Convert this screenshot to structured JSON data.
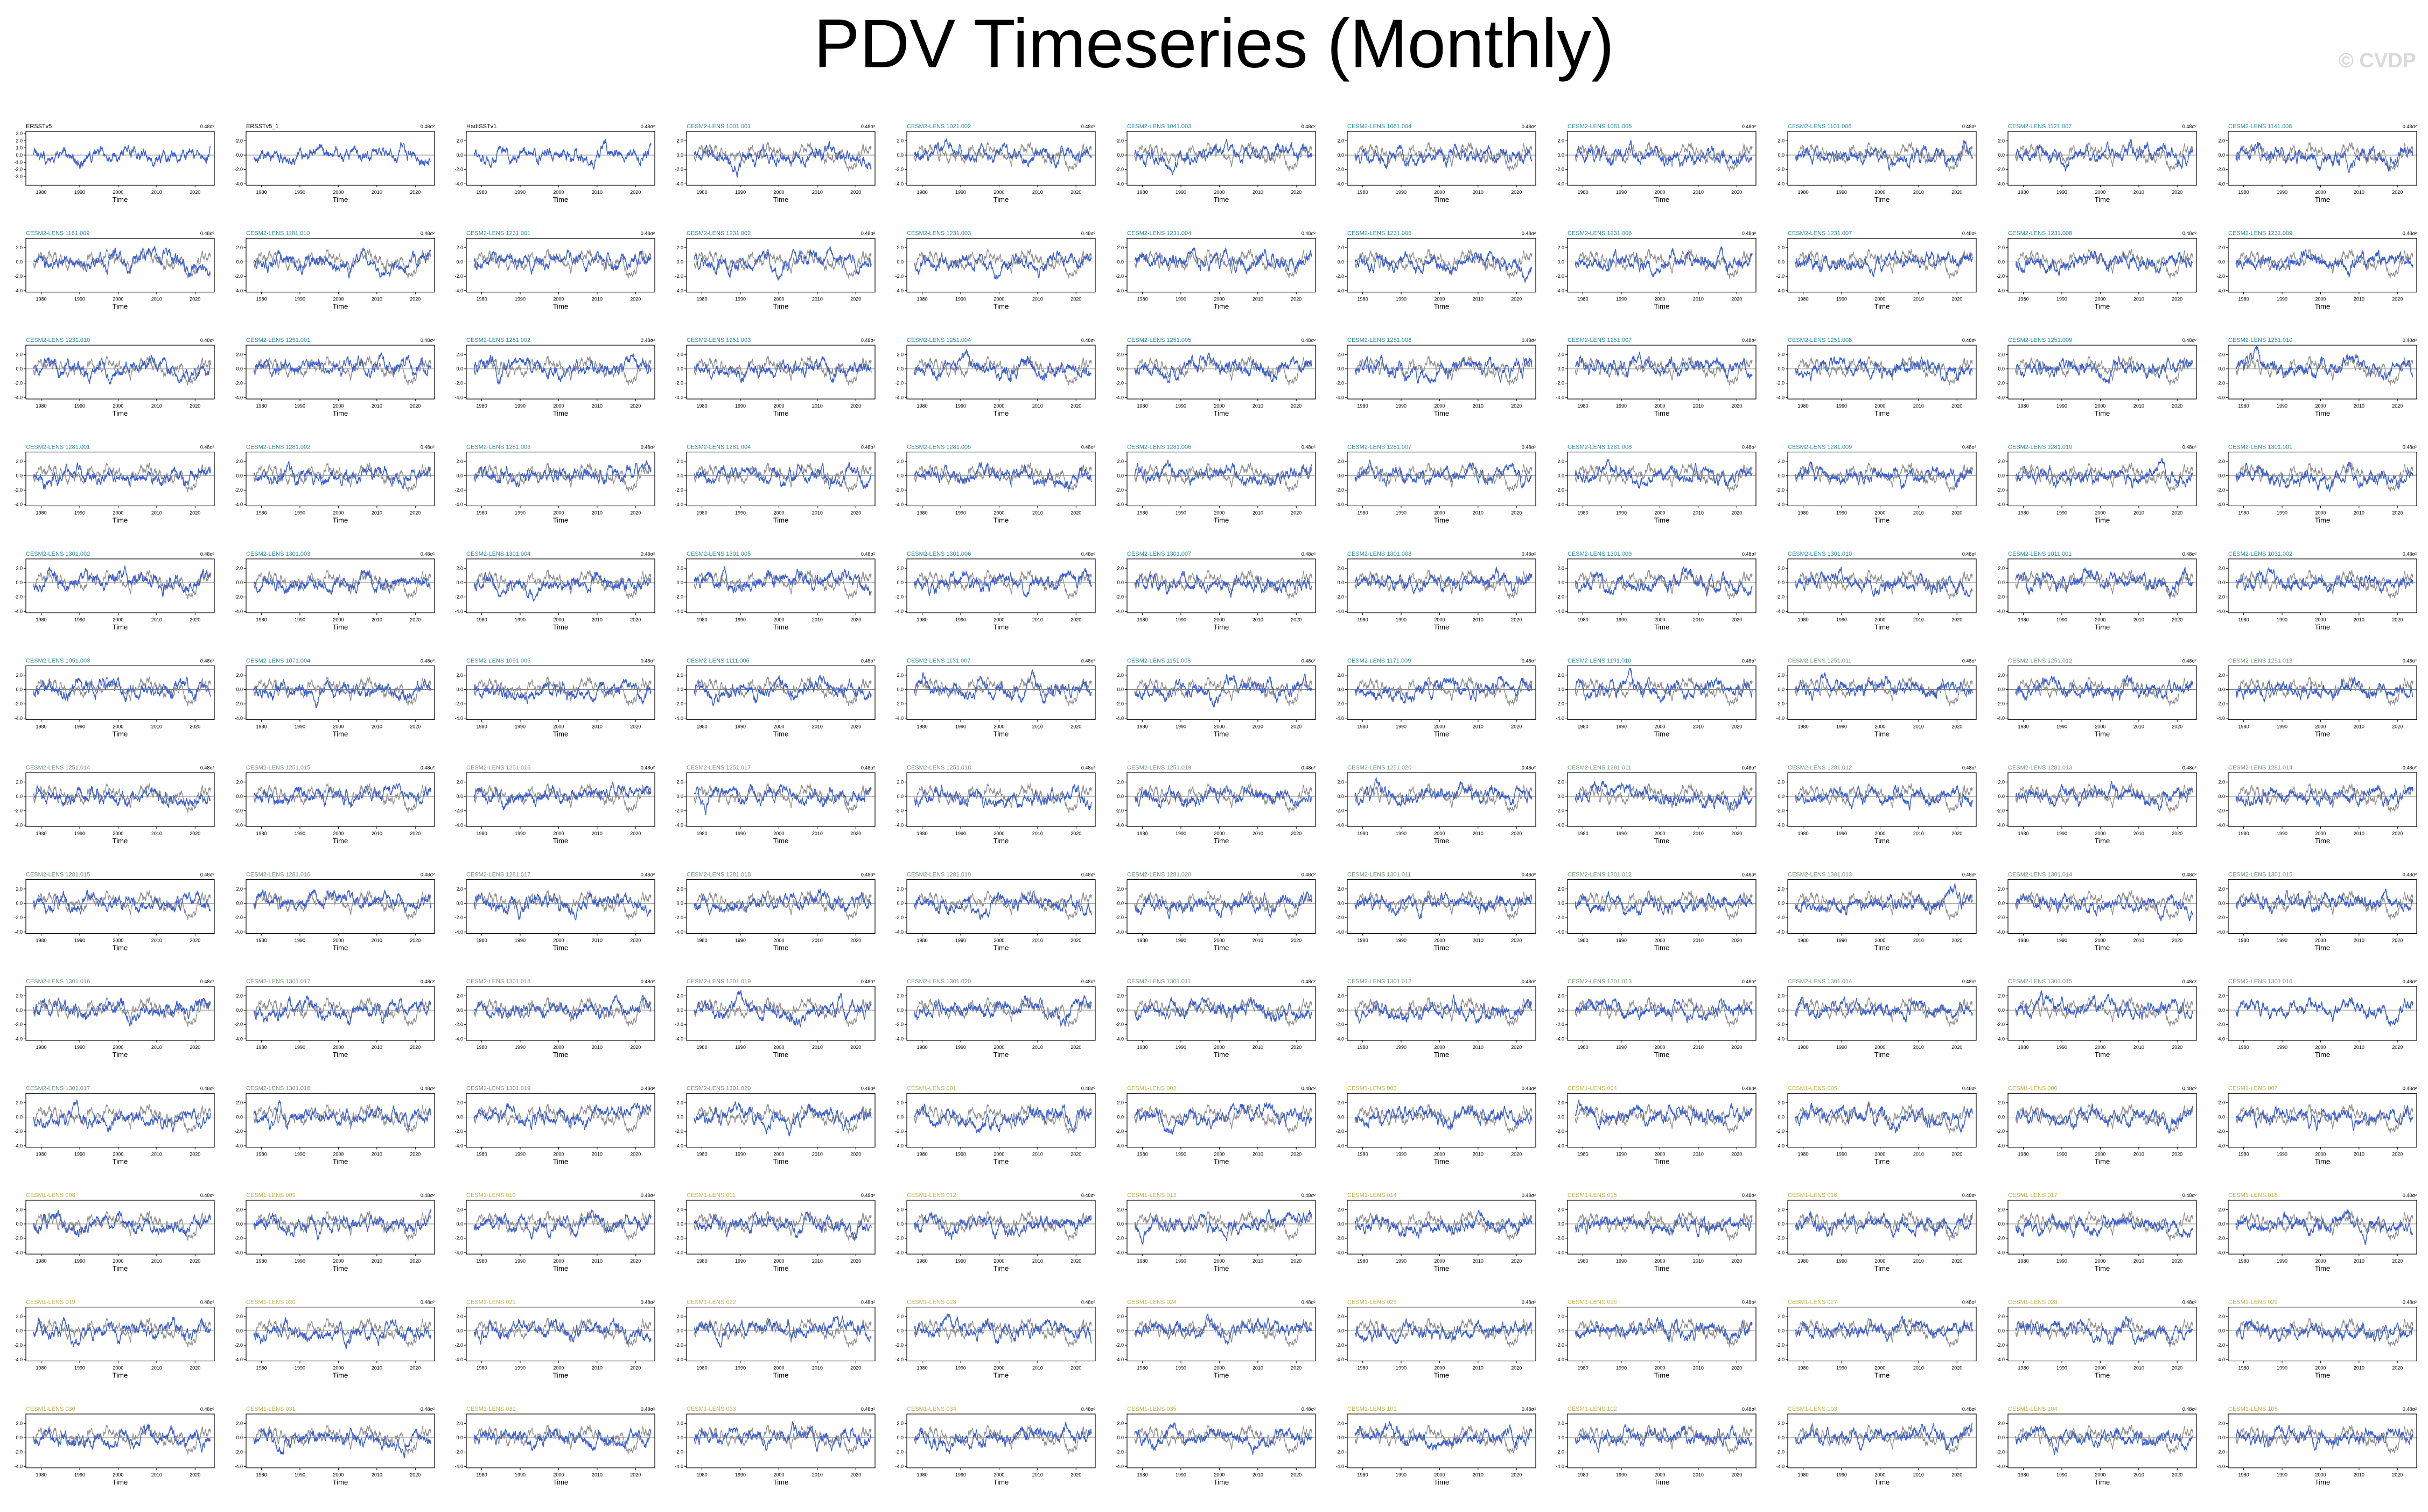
{
  "title": "PDV Timeseries (Monthly)",
  "watermark": "© CVDP",
  "colors": {
    "model_line": "#3b5fd6",
    "obs_line": "#8f8f8f",
    "obs_title": "#000000",
    "cesm2_title": "#2a8aa6",
    "cesm2_late_title": "#6c9a72",
    "cesm1_title": "#c9b24a",
    "axis": "#000000"
  },
  "chart_data": {
    "type": "line",
    "layout": "11 columns x 13 rows of small multiples",
    "x_tick_labels": [
      "1980",
      "1990",
      "2000",
      "2010",
      "2020"
    ],
    "xlim": [
      1976,
      2025
    ],
    "xlabel": "Time",
    "y_tick_labels": [
      "2.0",
      "0.0",
      "-2.0",
      "-4.0"
    ],
    "first_panel_y_tick_labels": [
      "3.0",
      "2.0",
      "1.0",
      "0.0",
      "-1.0",
      "-2.0",
      "-3.0"
    ],
    "stat_label": "0.48σ²",
    "series": [
      {
        "name": "observed (grey)",
        "values": []
      },
      {
        "name": "simulation (blue)",
        "values": []
      }
    ],
    "panel_titles": [
      "ERSSTv5",
      "ERSSTv5_1",
      "HadISSTv1",
      "CESM2-LENS 1001.001",
      "CESM2-LENS 1021.002",
      "CESM2-LENS 1041.003",
      "CESM2-LENS 1061.004",
      "CESM2-LENS 1081.005",
      "CESM2-LENS 1101.006",
      "CESM2-LENS 1121.007",
      "CESM2-LENS 1141.008",
      "CESM2-LENS 1161.009",
      "CESM2-LENS 1181.010",
      "CESM2-LENS 1231.001",
      "CESM2-LENS 1231.002",
      "CESM2-LENS 1231.003",
      "CESM2-LENS 1231.004",
      "CESM2-LENS 1231.005",
      "CESM2-LENS 1231.006",
      "CESM2-LENS 1231.007",
      "CESM2-LENS 1231.008",
      "CESM2-LENS 1231.009",
      "CESM2-LENS 1231.010",
      "CESM2-LENS 1251.001",
      "CESM2-LENS 1251.002",
      "CESM2-LENS 1251.003",
      "CESM2-LENS 1251.004",
      "CESM2-LENS 1251.005",
      "CESM2-LENS 1251.006",
      "CESM2-LENS 1251.007",
      "CESM2-LENS 1251.008",
      "CESM2-LENS 1251.009",
      "CESM2-LENS 1251.010",
      "CESM2-LENS 1281.001",
      "CESM2-LENS 1281.002",
      "CESM2-LENS 1281.003",
      "CESM2-LENS 1281.004",
      "CESM2-LENS 1281.005",
      "CESM2-LENS 1281.006",
      "CESM2-LENS 1281.007",
      "CESM2-LENS 1281.008",
      "CESM2-LENS 1281.009",
      "CESM2-LENS 1281.010",
      "CESM2-LENS 1301.001",
      "CESM2-LENS 1301.002",
      "CESM2-LENS 1301.003",
      "CESM2-LENS 1301.004",
      "CESM2-LENS 1301.005",
      "CESM2-LENS 1301.006",
      "CESM2-LENS 1301.007",
      "CESM2-LENS 1301.008",
      "CESM2-LENS 1301.009",
      "CESM2-LENS 1301.010",
      "CESM2-LENS 1011.001",
      "CESM2-LENS 1031.002",
      "CESM2-LENS 1051.003",
      "CESM2-LENS 1071.004",
      "CESM2-LENS 1091.005",
      "CESM2-LENS 1111.006",
      "CESM2-LENS 1131.007",
      "CESM2-LENS 1151.008",
      "CESM2-LENS 1171.009",
      "CESM2-LENS 1191.010",
      "CESM2-LENS 1251.011",
      "CESM2-LENS 1251.012",
      "CESM2-LENS 1251.013",
      "CESM2-LENS 1251.014",
      "CESM2-LENS 1251.015",
      "CESM2-LENS 1251.016",
      "CESM2-LENS 1251.017",
      "CESM2-LENS 1251.018",
      "CESM2-LENS 1251.019",
      "CESM2-LENS 1251.020",
      "CESM2-LENS 1281.011",
      "CESM2-LENS 1281.012",
      "CESM2-LENS 1281.013",
      "CESM2-LENS 1281.014",
      "CESM2-LENS 1281.015",
      "CESM2-LENS 1281.016",
      "CESM2-LENS 1281.017",
      "CESM2-LENS 1281.018",
      "CESM2-LENS 1281.019",
      "CESM2-LENS 1281.020",
      "CESM2-LENS 1301.011",
      "CESM2-LENS 1301.012",
      "CESM2-LENS 1301.013",
      "CESM2-LENS 1301.014",
      "CESM2-LENS 1301.015",
      "CESM2-LENS 1301.016",
      "CESM2-LENS 1301.017",
      "CESM2-LENS 1301.018",
      "CESM2-LENS 1301.019",
      "CESM2-LENS 1301.020",
      "CESM2-LENS 1301.011",
      "CESM2-LENS 1301.012",
      "CESM2-LENS 1301.013",
      "CESM2-LENS 1301.014",
      "CESM2-LENS 1301.015",
      "CESM2-LENS 1301.016",
      "CESM2-LENS 1301.017",
      "CESM2-LENS 1301.018",
      "CESM2-LENS 1301.019",
      "CESM2-LENS 1301.020",
      "CESM1-LENS 001",
      "CESM1-LENS 002",
      "CESM1-LENS 003",
      "CESM1-LENS 004",
      "CESM1-LENS 005",
      "CESM1-LENS 006",
      "CESM1-LENS 007",
      "CESM1-LENS 008",
      "CESM1-LENS 009",
      "CESM1-LENS 010",
      "CESM1-LENS 011",
      "CESM1-LENS 012",
      "CESM1-LENS 013",
      "CESM1-LENS 014",
      "CESM1-LENS 015",
      "CESM1-LENS 016",
      "CESM1-LENS 017",
      "CESM1-LENS 018",
      "CESM1-LENS 019",
      "CESM1-LENS 020",
      "CESM1-LENS 021",
      "CESM1-LENS 022",
      "CESM1-LENS 023",
      "CESM1-LENS 024",
      "CESM1-LENS 025",
      "CESM1-LENS 026",
      "CESM1-LENS 027",
      "CESM1-LENS 028",
      "CESM1-LENS 029",
      "CESM1-LENS 030",
      "CESM1-LENS 031",
      "CESM1-LENS 032",
      "CESM1-LENS 033",
      "CESM1-LENS 034",
      "CESM1-LENS 035",
      "CESM1-LENS 101",
      "CESM1-LENS 102",
      "CESM1-LENS 103",
      "CESM1-LENS 104",
      "CESM1-LENS 105"
    ]
  }
}
